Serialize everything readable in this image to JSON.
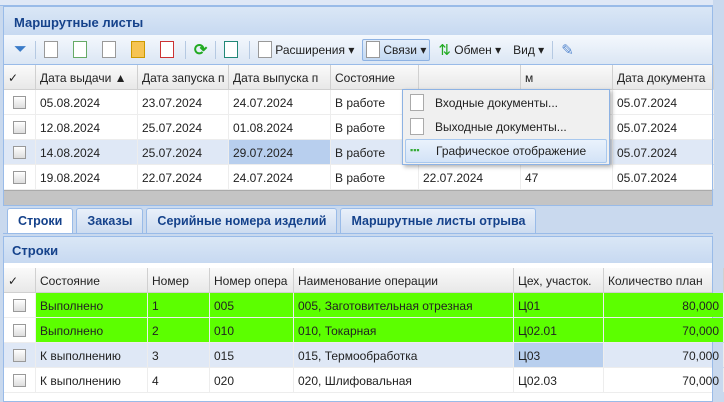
{
  "title": "Маршрутные листы",
  "toolbar": {
    "extensions": "Расширения ▾",
    "links": "Связи ▾",
    "exchange": "Обмен ▾",
    "view": "Вид ▾"
  },
  "links_menu": [
    "Входные документы...",
    "Выходные документы...",
    "Графическое отображение"
  ],
  "top_grid": {
    "columns": [
      "✓",
      "Дата выдачи ▲",
      "Дата запуска п",
      "Дата выпуска п",
      "Состояние",
      "",
      "м",
      "Дата документа"
    ],
    "rows": [
      [
        "05.08.2024",
        "23.07.2024",
        "24.07.2024",
        "В работе",
        "",
        "",
        "05.07.2024"
      ],
      [
        "12.08.2024",
        "25.07.2024",
        "01.08.2024",
        "В работе",
        "",
        "",
        "05.07.2024"
      ],
      [
        "14.08.2024",
        "25.07.2024",
        "29.07.2024",
        "В работе",
        "",
        "",
        "05.07.2024"
      ],
      [
        "19.08.2024",
        "22.07.2024",
        "24.07.2024",
        "В работе",
        "22.07.2024",
        "47",
        "05.07.2024"
      ]
    ]
  },
  "tabs": [
    "Строки",
    "Заказы",
    "Серийные номера изделий",
    "Маршрутные листы отрыва"
  ],
  "lines_panel": {
    "title": "Строки",
    "columns": [
      "✓",
      "Состояние",
      "Номер",
      "Номер опера",
      "Наименование операции",
      "Цех, участок.",
      "Количество план"
    ],
    "rows": [
      [
        "Выполнено",
        "1",
        "005",
        "005, Заготовительная отрезная",
        "Ц01",
        "80,000"
      ],
      [
        "Выполнено",
        "2",
        "010",
        "010, Токарная",
        "Ц02.01",
        "70,000"
      ],
      [
        "К выполнению",
        "3",
        "015",
        "015, Термообработка",
        "Ц03",
        "70,000"
      ],
      [
        "К выполнению",
        "4",
        "020",
        "020, Шлифовальная",
        "Ц02.03",
        "70,000"
      ]
    ]
  },
  "colors": {
    "done": "#5cff00",
    "header": "#15428b",
    "selection": "#dfe8f6"
  }
}
